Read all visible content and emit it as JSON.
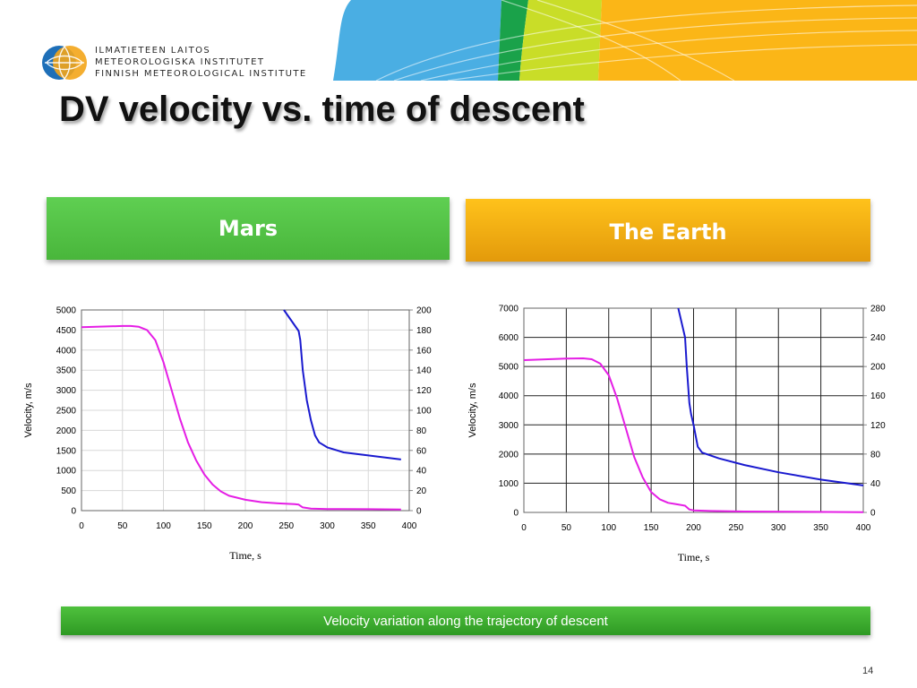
{
  "header": {
    "org_lines": [
      "ILMATIETEEN LAITOS",
      "METEOROLOGISKA INSTITUTET",
      "FINNISH METEOROLOGICAL INSTITUTE"
    ],
    "logo_icon": "fmi-globe-logo-icon",
    "banner_colors": [
      "#4aaee3",
      "#1aa24a",
      "#c9dd28",
      "#fbb617"
    ]
  },
  "slide": {
    "title": "DV velocity vs. time of descent",
    "mars_label": "Mars",
    "earth_label": "The Earth",
    "caption": "Velocity variation along the trajectory of descent",
    "page_number": "14"
  },
  "colors": {
    "mars_header": "#52c443",
    "earth_header": "#f3ab12",
    "caption_bg": "#3aa92e",
    "altitude_series": "#e51ee5",
    "velocity_series": "#1a1acf"
  },
  "chart_data": [
    {
      "type": "line",
      "panel": "Mars",
      "xlabel": "Time, s",
      "ylabel": "Velocity, m/s",
      "xlim": [
        0,
        400
      ],
      "ylim": [
        0,
        5000
      ],
      "y2lim": [
        0,
        200
      ],
      "x_ticks": [
        "0",
        "50",
        "100",
        "150",
        "200",
        "250",
        "300",
        "350",
        "400"
      ],
      "y_ticks": [
        "0",
        "500",
        "1000",
        "1500",
        "2000",
        "2500",
        "3000",
        "3500",
        "4000",
        "4500",
        "5000"
      ],
      "y2_ticks": [
        "0",
        "20",
        "40",
        "60",
        "80",
        "100",
        "120",
        "140",
        "160",
        "180",
        "200"
      ],
      "grid": true,
      "series": [
        {
          "axis": "left",
          "color": "#e51ee5",
          "x": [
            0,
            50,
            60,
            70,
            80,
            90,
            100,
            110,
            120,
            130,
            140,
            150,
            160,
            170,
            180,
            200,
            220,
            240,
            260,
            265,
            270,
            280,
            300,
            350,
            390
          ],
          "y": [
            4570,
            4600,
            4600,
            4580,
            4500,
            4250,
            3700,
            3000,
            2300,
            1700,
            1250,
            900,
            650,
            480,
            370,
            270,
            210,
            180,
            160,
            150,
            80,
            50,
            40,
            35,
            30
          ]
        },
        {
          "axis": "right",
          "color": "#1a1acf",
          "x": [
            247,
            265,
            267,
            270,
            275,
            280,
            285,
            290,
            300,
            320,
            350,
            390
          ],
          "y": [
            200,
            179,
            170,
            140,
            110,
            90,
            75,
            68,
            63,
            58,
            55,
            51
          ]
        }
      ]
    },
    {
      "type": "line",
      "panel": "The Earth",
      "xlabel": "Time, s",
      "ylabel": "Velocity, m/s",
      "xlim": [
        0,
        400
      ],
      "ylim": [
        0,
        7000
      ],
      "y2lim": [
        0,
        280
      ],
      "x_ticks": [
        "0",
        "50",
        "100",
        "150",
        "200",
        "250",
        "300",
        "350",
        "400"
      ],
      "y_ticks": [
        "0",
        "1000",
        "2000",
        "3000",
        "4000",
        "5000",
        "6000",
        "7000"
      ],
      "y2_ticks": [
        "0",
        "40",
        "80",
        "120",
        "160",
        "200",
        "240",
        "280"
      ],
      "grid": true,
      "series": [
        {
          "axis": "left",
          "color": "#e51ee5",
          "x": [
            0,
            50,
            70,
            80,
            90,
            100,
            110,
            120,
            130,
            140,
            150,
            160,
            170,
            180,
            190,
            195,
            200,
            220,
            260,
            320,
            400
          ],
          "y": [
            5220,
            5270,
            5280,
            5250,
            5100,
            4700,
            3900,
            2900,
            1900,
            1200,
            700,
            450,
            330,
            280,
            230,
            100,
            70,
            50,
            30,
            20,
            10
          ]
        },
        {
          "axis": "right",
          "color": "#1a1acf",
          "x": [
            182,
            190,
            192,
            195,
            197,
            200,
            205,
            210,
            230,
            260,
            300,
            350,
            400
          ],
          "y": [
            280,
            240,
            200,
            150,
            135,
            120,
            90,
            82,
            74,
            65,
            55,
            45,
            37
          ]
        }
      ]
    }
  ]
}
